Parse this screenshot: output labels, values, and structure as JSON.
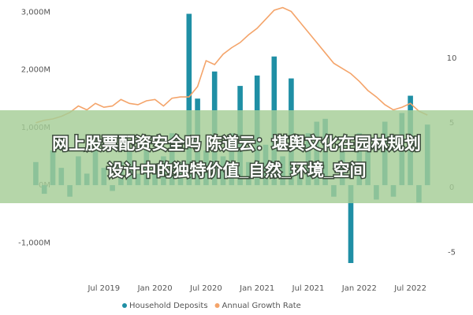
{
  "chart_data": {
    "type": "bar",
    "overlay_title": [
      "网上股票配资安全吗 陈道云：堪舆文化在园林规划",
      "设计中的独特价值_自然_环境_空间"
    ],
    "categories": [
      null,
      null,
      null,
      null,
      null,
      null,
      null,
      null,
      "Jul 2019",
      null,
      null,
      null,
      null,
      null,
      "Jan 2020",
      null,
      null,
      null,
      null,
      null,
      "Jul 2020",
      null,
      null,
      null,
      null,
      null,
      "Jan 2021",
      null,
      null,
      null,
      null,
      null,
      "Jul 2021",
      null,
      null,
      null,
      null,
      null,
      "Jan 2022",
      null,
      null,
      null,
      null,
      null,
      "Jul 2022",
      null,
      null
    ],
    "series": [
      {
        "name": "Household Deposits",
        "type": "bar",
        "color": "#1f8fa5",
        "values": [
          400,
          -150,
          600,
          300,
          -200,
          500,
          200,
          700,
          300,
          -100,
          400,
          600,
          200,
          800,
          300,
          500,
          900,
          400,
          2970,
          1500,
          600,
          1970,
          500,
          900,
          1720,
          400,
          1900,
          700,
          2230,
          500,
          1850,
          300,
          900,
          1100,
          1150,
          -200,
          800,
          -1350,
          900,
          600,
          -250,
          1100,
          -200,
          1250,
          1550,
          -300,
          1050
        ]
      },
      {
        "name": "Annual Growth Rate",
        "type": "line",
        "axis": "y2",
        "color": "#f4a46a",
        "values": [
          5.0,
          5.2,
          5.3,
          5.5,
          5.8,
          6.3,
          6.0,
          6.5,
          6.2,
          6.3,
          6.8,
          6.5,
          6.4,
          6.7,
          6.8,
          6.3,
          6.9,
          7.0,
          7.0,
          7.8,
          9.8,
          9.5,
          10.3,
          10.8,
          11.2,
          11.8,
          12.3,
          13.0,
          13.7,
          13.9,
          13.6,
          12.8,
          12.0,
          11.2,
          10.4,
          9.6,
          9.2,
          8.8,
          8.2,
          7.5,
          7.0,
          6.4,
          6.0,
          6.2,
          6.5,
          5.9,
          5.6
        ]
      }
    ],
    "ylim": [
      -1500,
      3100
    ],
    "yticks": [
      {
        "value": -1000,
        "label": "-1,000M"
      },
      {
        "value": 0,
        "label": "0M"
      },
      {
        "value": 1000,
        "label": "1,000M"
      },
      {
        "value": 2000,
        "label": "2,000M"
      },
      {
        "value": 3000,
        "label": "3,000M"
      }
    ],
    "y2lim": [
      -6.5,
      14
    ],
    "y2ticks": [
      -5,
      0,
      5,
      10
    ],
    "grid": false,
    "legend": "bottom"
  }
}
